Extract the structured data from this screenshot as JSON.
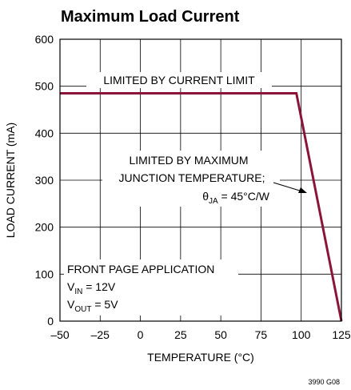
{
  "chart_data": {
    "type": "line",
    "title": "Maximum Load Current",
    "x_label": "TEMPERATURE (°C)",
    "y_label": "LOAD CURRENT (mA)",
    "x": [
      -50,
      97,
      125
    ],
    "series": [
      {
        "name": "Load current",
        "color": "#8b1538",
        "values": [
          485,
          485,
          0
        ]
      }
    ],
    "xlim": [
      -50,
      125
    ],
    "xticks": [
      {
        "value": -50,
        "label": "–50"
      },
      {
        "value": -25,
        "label": "–25"
      },
      0,
      25,
      50,
      75,
      100,
      125
    ],
    "ylim": [
      0,
      600
    ],
    "yticks": [
      0,
      100,
      200,
      300,
      400,
      500,
      600
    ],
    "grid": true,
    "annotations": [
      {
        "text": "LIMITED BY CURRENT LIMIT"
      },
      {
        "lines": [
          "LIMITED BY MAXIMUM",
          "JUNCTION TEMPERATURE;"
        ],
        "parts": [
          "θ",
          "JA",
          " = 45°C/W"
        ]
      },
      {
        "text": "FRONT PAGE APPLICATION",
        "vin": [
          "V",
          "IN",
          " = 12V"
        ],
        "vout": [
          "V",
          "OUT",
          " = 5V"
        ]
      }
    ],
    "footnote": "3990 G08"
  }
}
